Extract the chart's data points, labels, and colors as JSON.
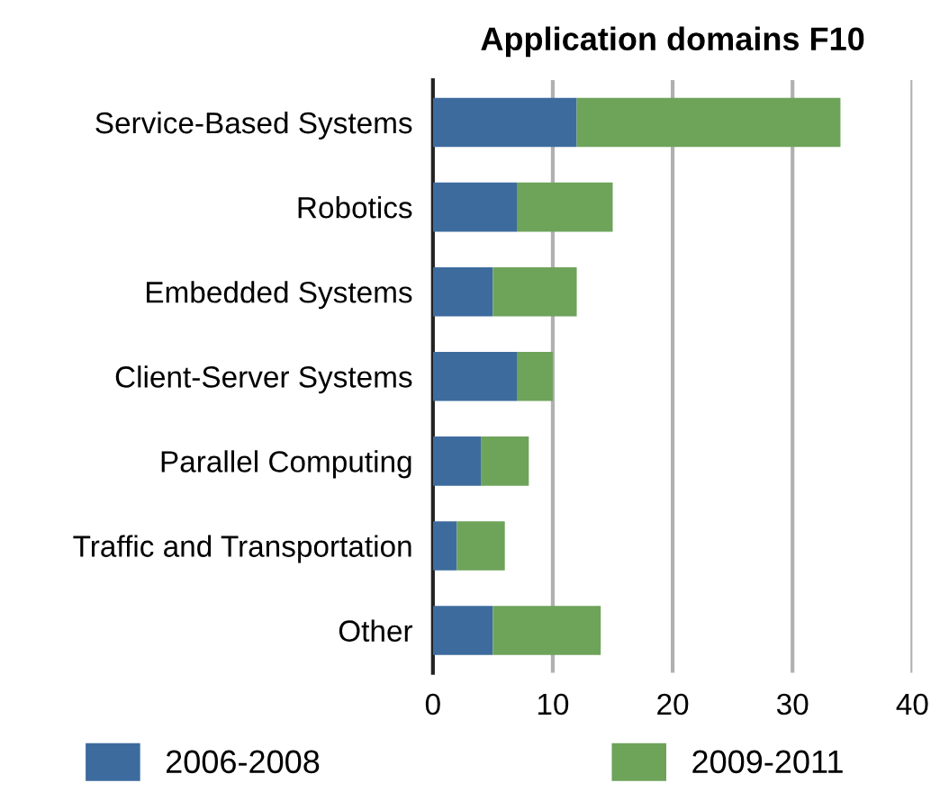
{
  "chart_data": {
    "type": "bar",
    "orientation": "horizontal",
    "stacked": true,
    "title": "Application domains F10",
    "categories": [
      "Service-Based Systems",
      "Robotics",
      "Embedded Systems",
      "Client-Server Systems",
      "Parallel Computing",
      "Traffic and Transportation",
      "Other"
    ],
    "series": [
      {
        "name": "2006-2008",
        "color": "#3d6b9e",
        "values": [
          12,
          7,
          5,
          7,
          4,
          2,
          5
        ]
      },
      {
        "name": "2009-2011",
        "color": "#6ea35a",
        "values": [
          22,
          8,
          7,
          3,
          4,
          4,
          9
        ]
      }
    ],
    "xlim": [
      0,
      40
    ],
    "xticks": [
      0,
      10,
      20,
      30,
      40
    ],
    "grid": "x",
    "legend": "bottom"
  }
}
